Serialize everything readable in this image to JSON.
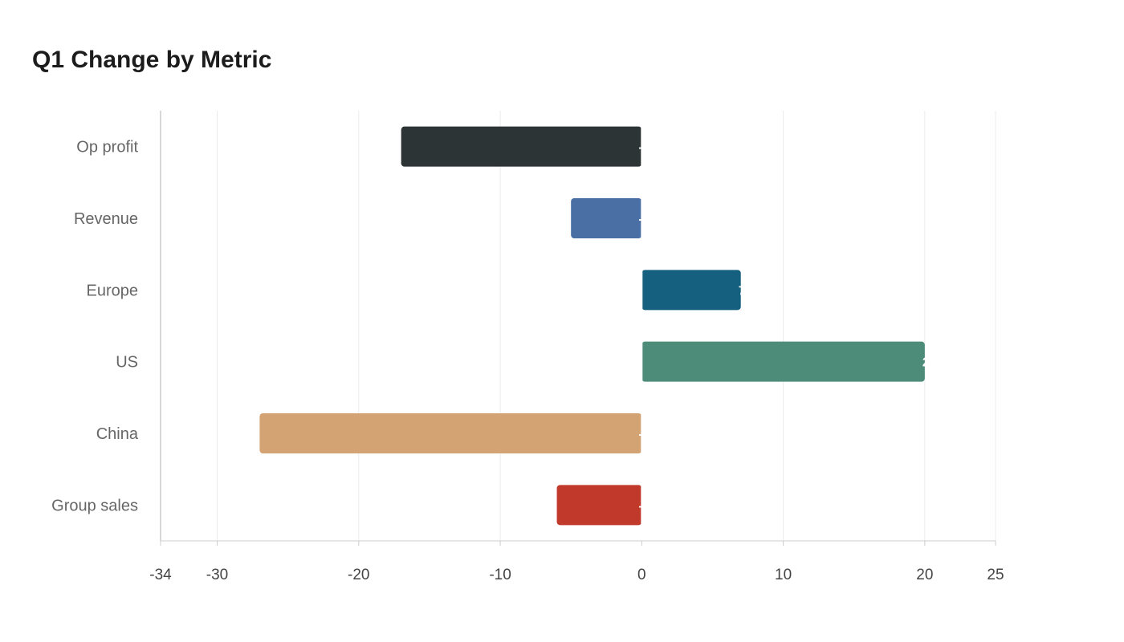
{
  "chart_data": {
    "type": "bar",
    "orientation": "horizontal",
    "title": "Q1 Change by Metric",
    "xlabel": "",
    "ylabel": "",
    "categories": [
      "Op profit",
      "Revenue",
      "Europe",
      "US",
      "China",
      "Group sales"
    ],
    "values": [
      -17,
      -5,
      7,
      20,
      -27,
      -6
    ],
    "colors": [
      "#2d3436",
      "#4a6fa5",
      "#16607f",
      "#4e8c7a",
      "#d4a373",
      "#c0392b"
    ],
    "xlim": [
      -34,
      25
    ],
    "xticks": [
      -34,
      -30,
      -20,
      -10,
      0,
      10,
      20,
      25
    ],
    "grid": true,
    "legend": "none"
  }
}
